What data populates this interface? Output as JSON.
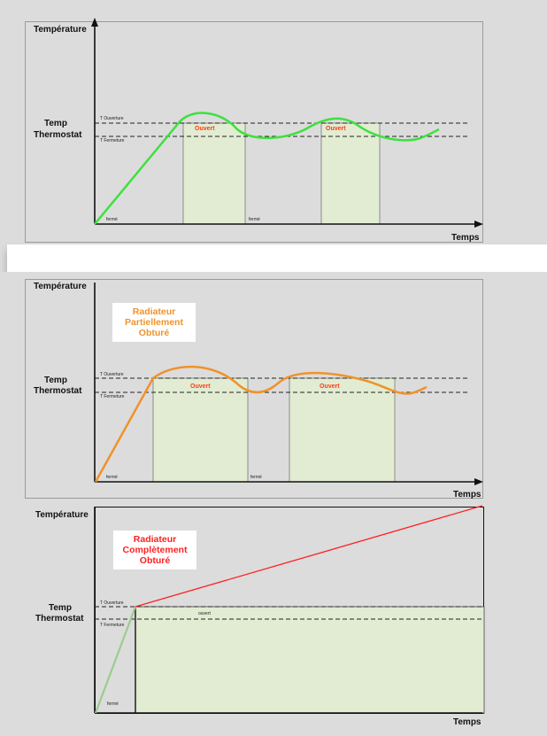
{
  "labels": {
    "y_axis": "Température",
    "x_axis": "Temps",
    "thermostat_line1": "Temp",
    "thermostat_line2": "Thermostat",
    "t_open": "T Ouverture",
    "t_close": "T Fermeture",
    "open": "Ouvert",
    "open_lower": "ouvert",
    "closed": "fermé"
  },
  "panels": [
    {
      "title": "",
      "curve_color": "#3ee03e"
    },
    {
      "title": [
        "Radiateur",
        "Partiellement",
        "Obturé"
      ],
      "title_color": "#f0922a",
      "curve_color": "#f0922a"
    },
    {
      "title": [
        "Radiateur",
        "Complètement",
        "Obturé"
      ],
      "title_color": "#ff2020",
      "curve_color": "#ff2020",
      "rise_color": "#9ccc8c"
    }
  ],
  "colors": {
    "open_fill": "#e1ecd3",
    "open_text": "#ff3c14"
  }
}
